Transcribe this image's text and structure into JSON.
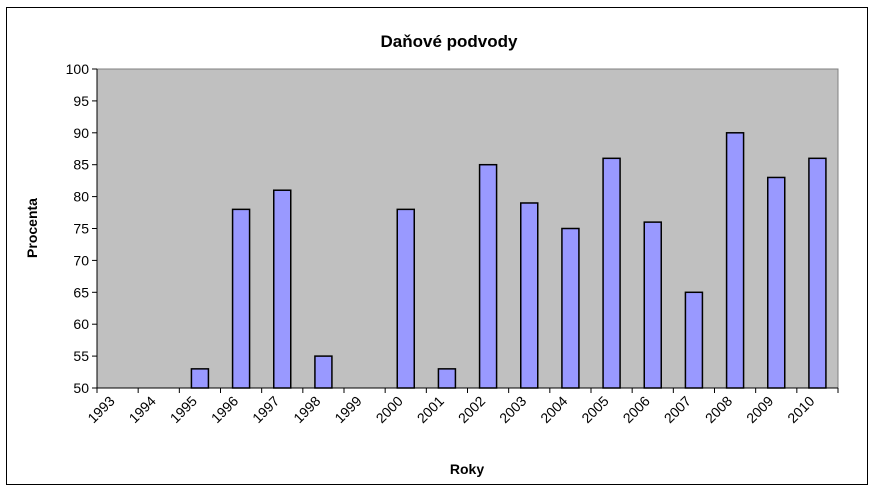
{
  "chart_data": {
    "type": "bar",
    "title": "Daňové podvody",
    "xlabel": "Roky",
    "ylabel": "Procenta",
    "ylim": [
      50,
      100
    ],
    "yticks": [
      50,
      55,
      60,
      65,
      70,
      75,
      80,
      85,
      90,
      95,
      100
    ],
    "categories": [
      "1993",
      "1994",
      "1995",
      "1996",
      "1997",
      "1998",
      "1999",
      "2000",
      "2001",
      "2002",
      "2003",
      "2004",
      "2005",
      "2006",
      "2007",
      "2008",
      "2009",
      "2010"
    ],
    "values": [
      null,
      null,
      53,
      78,
      81,
      55,
      null,
      78,
      53,
      85,
      79,
      75,
      86,
      76,
      65,
      90,
      83,
      86
    ],
    "grid": false,
    "legend": "none",
    "colors": {
      "plot_background": "#c0c0c0",
      "bar_fill": "#9999ff",
      "bar_stroke": "#000000"
    }
  }
}
